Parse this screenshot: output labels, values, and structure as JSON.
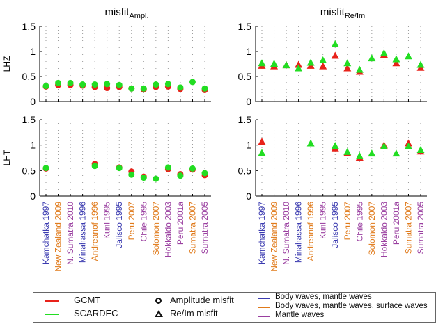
{
  "chart_data": {
    "type": "scatter",
    "stations": [
      "Kamchatka 1997",
      "New Zealand 2009",
      "N. Sumatra 2010",
      "Minahassa 1996",
      "Andreanof 1996",
      "Kuril 1995",
      "Jalisco 1995",
      "Peru 2007",
      "Chile 1995",
      "Solomon 2007",
      "Hokkaido 2003",
      "Peru 2001a",
      "Sumatra 2007",
      "Sumatra 2005"
    ],
    "station_types": [
      "body",
      "body_mantle_surface",
      "mantle",
      "body",
      "body_mantle_surface",
      "mantle",
      "body",
      "body_mantle_surface",
      "mantle",
      "body_mantle_surface",
      "mantle",
      "mantle",
      "body_mantle_surface",
      "mantle"
    ],
    "type_colors": {
      "body": "#3b3bb0",
      "body_mantle_surface": "#e07a1a",
      "mantle": "#9a3fa0"
    },
    "series_colors": {
      "GCMT": "#e8221a",
      "SCARDEC": "#22dd22"
    },
    "ylim": [
      0,
      1.5
    ],
    "yticks": [
      "0",
      "0.5",
      "1",
      "1.5"
    ],
    "panels": [
      {
        "id": "top-left",
        "title": "misfit",
        "title_sub": "Ampl.",
        "ylabel": "LHZ",
        "marker": "circle",
        "GCMT": [
          0.3,
          0.33,
          0.33,
          0.32,
          0.29,
          0.27,
          0.29,
          0.26,
          0.24,
          0.29,
          0.3,
          0.25,
          null,
          0.23
        ],
        "SCARDEC": [
          0.31,
          0.37,
          0.37,
          0.34,
          0.34,
          0.35,
          0.33,
          0.26,
          0.26,
          0.34,
          0.35,
          0.28,
          0.39,
          0.26
        ]
      },
      {
        "id": "top-right",
        "title": "misfit",
        "title_sub": "Re/Im",
        "ylabel": "",
        "marker": "triangle",
        "GCMT": [
          0.71,
          0.7,
          0.72,
          0.73,
          0.71,
          0.7,
          0.91,
          0.66,
          0.59,
          null,
          0.93,
          0.76,
          null,
          0.67
        ],
        "SCARDEC": [
          0.76,
          0.75,
          0.72,
          0.66,
          0.77,
          0.82,
          1.14,
          0.76,
          0.63,
          0.86,
          0.96,
          0.84,
          0.9,
          0.73
        ]
      },
      {
        "id": "bottom-left",
        "title": "",
        "title_sub": "",
        "ylabel": "LHT",
        "marker": "circle",
        "GCMT": [
          0.54,
          null,
          null,
          null,
          0.63,
          null,
          0.56,
          0.48,
          0.38,
          null,
          0.53,
          0.43,
          0.52,
          0.41
        ],
        "SCARDEC": [
          0.55,
          null,
          null,
          null,
          0.59,
          null,
          0.55,
          0.42,
          0.36,
          0.34,
          0.56,
          0.4,
          0.54,
          0.45
        ],
        "show_xticks": true
      },
      {
        "id": "bottom-right",
        "title": "",
        "title_sub": "",
        "ylabel": "",
        "marker": "triangle",
        "GCMT": [
          1.06,
          null,
          null,
          null,
          null,
          null,
          0.93,
          0.84,
          0.75,
          null,
          0.99,
          null,
          1.03,
          0.87
        ],
        "SCARDEC": [
          0.84,
          null,
          null,
          null,
          1.03,
          null,
          0.98,
          0.86,
          0.78,
          0.83,
          0.97,
          0.83,
          0.97,
          0.9
        ],
        "show_xticks": true
      }
    ]
  },
  "legend": {
    "gcmt_label": "GCMT",
    "scardec_label": "SCARDEC",
    "amplitude_label": "Amplitude misfit",
    "reim_label": "Re/Im misfit",
    "body_label": "Body waves, mantle waves",
    "body_surface_label": "Body waves, mantle waves, surface waves",
    "mantle_label": "Mantle waves"
  }
}
